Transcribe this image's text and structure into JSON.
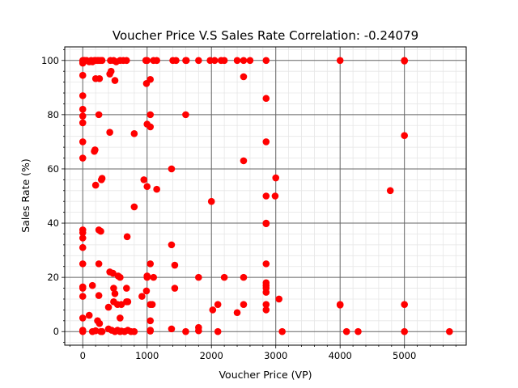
{
  "chart_data": {
    "type": "scatter",
    "title": "Voucher Price V.S Sales Rate Correlation: -0.24079",
    "xlabel": "Voucher Price (VP)",
    "ylabel": "Sales Rate (%)",
    "xlim": [
      -280,
      5960
    ],
    "ylim": [
      -5,
      105
    ],
    "x_ticks": [
      0,
      1000,
      2000,
      3000,
      4000,
      5000
    ],
    "y_ticks": [
      0,
      20,
      40,
      60,
      80,
      100
    ],
    "x_tick_labels": [
      "0",
      "1000",
      "2000",
      "3000",
      "4000",
      "5000"
    ],
    "y_tick_labels": [
      "0",
      "20",
      "40",
      "60",
      "80",
      "100"
    ],
    "major_grid": true,
    "minor_grid": true,
    "marker_color": "#ff0000",
    "points": [
      [
        0,
        100
      ],
      [
        0,
        99.5
      ],
      [
        0,
        99
      ],
      [
        10,
        100
      ],
      [
        0,
        94.5
      ],
      [
        0,
        87
      ],
      [
        0,
        82
      ],
      [
        0,
        79.5
      ],
      [
        0,
        77
      ],
      [
        0,
        70
      ],
      [
        0,
        64
      ],
      [
        0,
        37.5
      ],
      [
        0,
        36.5
      ],
      [
        0,
        34.5
      ],
      [
        0,
        31
      ],
      [
        0,
        25
      ],
      [
        0,
        16.5
      ],
      [
        0,
        16
      ],
      [
        0,
        13
      ],
      [
        0,
        5
      ],
      [
        0,
        0.5
      ],
      [
        0,
        0
      ],
      [
        30,
        100
      ],
      [
        60,
        100
      ],
      [
        100,
        99.5
      ],
      [
        130,
        100
      ],
      [
        150,
        99.5
      ],
      [
        180,
        100
      ],
      [
        200,
        100
      ],
      [
        230,
        100
      ],
      [
        250,
        100
      ],
      [
        280,
        100
      ],
      [
        300,
        100
      ],
      [
        430,
        100
      ],
      [
        480,
        100
      ],
      [
        520,
        99.5
      ],
      [
        580,
        100
      ],
      [
        630,
        100
      ],
      [
        680,
        100
      ],
      [
        200,
        93.3
      ],
      [
        260,
        93.3
      ],
      [
        250,
        80
      ],
      [
        190,
        67
      ],
      [
        180,
        66.5
      ],
      [
        440,
        96
      ],
      [
        420,
        95
      ],
      [
        500,
        92.6
      ],
      [
        420,
        73.5
      ],
      [
        300,
        56.5
      ],
      [
        290,
        56
      ],
      [
        200,
        54
      ],
      [
        250,
        37.5
      ],
      [
        280,
        37
      ],
      [
        690,
        35
      ],
      [
        800,
        73
      ],
      [
        800,
        46
      ],
      [
        950,
        56
      ],
      [
        1000,
        53.5
      ],
      [
        1000,
        76.5
      ],
      [
        1050,
        75.5
      ],
      [
        1050,
        80
      ],
      [
        990,
        91.5
      ],
      [
        1050,
        93
      ],
      [
        980,
        100
      ],
      [
        1000,
        100
      ],
      [
        1100,
        100
      ],
      [
        1150,
        100
      ],
      [
        1400,
        100
      ],
      [
        1450,
        100
      ],
      [
        1600,
        100
      ],
      [
        1610,
        100
      ],
      [
        1800,
        100
      ],
      [
        1980,
        100
      ],
      [
        2050,
        100
      ],
      [
        2150,
        100
      ],
      [
        2200,
        100
      ],
      [
        2400,
        100
      ],
      [
        2500,
        100
      ],
      [
        2600,
        100
      ],
      [
        2850,
        100
      ],
      [
        4000,
        100
      ],
      [
        5000,
        100
      ],
      [
        5000,
        99.8
      ],
      [
        2500,
        94
      ],
      [
        2850,
        86
      ],
      [
        1600,
        80
      ],
      [
        2850,
        70
      ],
      [
        5000,
        72.3
      ],
      [
        2500,
        63
      ],
      [
        1380,
        60
      ],
      [
        3000,
        56.7
      ],
      [
        4780,
        52
      ],
      [
        1150,
        52.5
      ],
      [
        2850,
        50
      ],
      [
        2990,
        50
      ],
      [
        2000,
        48
      ],
      [
        2850,
        40
      ],
      [
        2850,
        39.8
      ],
      [
        1380,
        32
      ],
      [
        1430,
        24.5
      ],
      [
        1050,
        25
      ],
      [
        1000,
        20
      ],
      [
        1100,
        20
      ],
      [
        1800,
        20
      ],
      [
        2200,
        20
      ],
      [
        2500,
        20
      ],
      [
        2850,
        25
      ],
      [
        2850,
        18
      ],
      [
        2850,
        17
      ],
      [
        2850,
        16
      ],
      [
        2850,
        14.5
      ],
      [
        3050,
        12
      ],
      [
        2850,
        10
      ],
      [
        2850,
        8
      ],
      [
        4000,
        10
      ],
      [
        4000,
        9.8
      ],
      [
        5000,
        10
      ],
      [
        2400,
        7
      ],
      [
        2500,
        10
      ],
      [
        2100,
        10
      ],
      [
        2020,
        8
      ],
      [
        990,
        15
      ],
      [
        1430,
        16
      ],
      [
        1000,
        20.5
      ],
      [
        920,
        13
      ],
      [
        1050,
        10
      ],
      [
        1050,
        4
      ],
      [
        1050,
        0.5
      ],
      [
        1080,
        10
      ],
      [
        1380,
        1
      ],
      [
        1600,
        0
      ],
      [
        1800,
        1.5
      ],
      [
        1800,
        0.3
      ],
      [
        2100,
        0
      ],
      [
        3100,
        0
      ],
      [
        4100,
        0
      ],
      [
        4280,
        0
      ],
      [
        5000,
        0
      ],
      [
        5700,
        0
      ],
      [
        150,
        17
      ],
      [
        250,
        25
      ],
      [
        420,
        22
      ],
      [
        470,
        21.5
      ],
      [
        550,
        20.5
      ],
      [
        580,
        20
      ],
      [
        680,
        16
      ],
      [
        480,
        16
      ],
      [
        500,
        14
      ],
      [
        400,
        9
      ],
      [
        480,
        11
      ],
      [
        540,
        10
      ],
      [
        600,
        10
      ],
      [
        680,
        11
      ],
      [
        700,
        11
      ],
      [
        250,
        13.3
      ],
      [
        100,
        6
      ],
      [
        230,
        4
      ],
      [
        260,
        3
      ],
      [
        580,
        5
      ],
      [
        150,
        0
      ],
      [
        200,
        0.3
      ],
      [
        280,
        0
      ],
      [
        300,
        0
      ],
      [
        400,
        1
      ],
      [
        450,
        0.5
      ],
      [
        500,
        0
      ],
      [
        540,
        0.5
      ],
      [
        580,
        0
      ],
      [
        600,
        0.2
      ],
      [
        650,
        0
      ],
      [
        700,
        0.5
      ],
      [
        750,
        0
      ],
      [
        800,
        0
      ],
      [
        1050,
        0.2
      ]
    ]
  }
}
